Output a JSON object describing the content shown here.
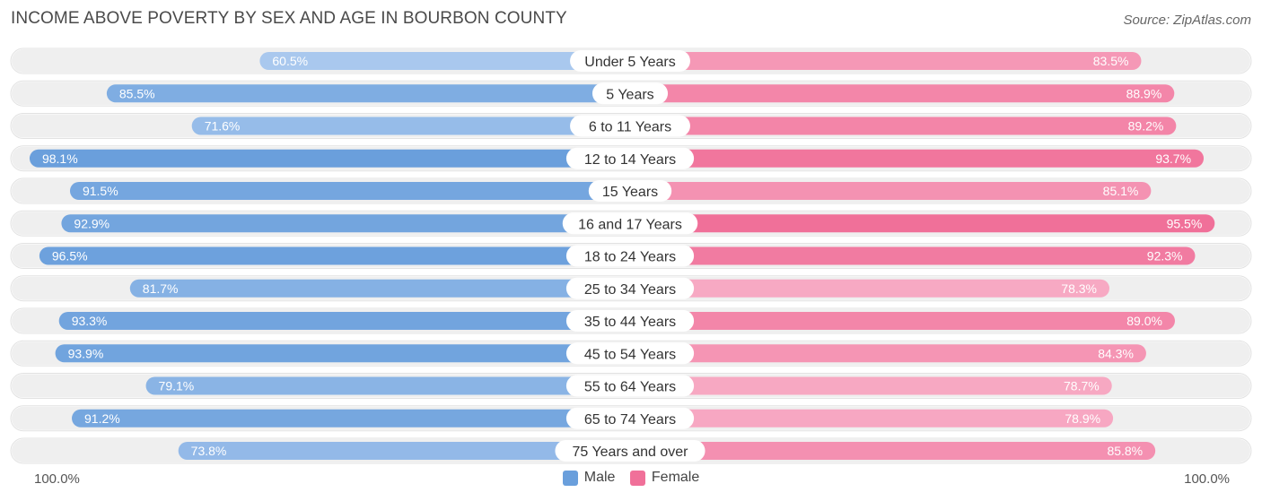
{
  "title": "INCOME ABOVE POVERTY BY SEX AND AGE IN BOURBON COUNTY",
  "source": "Source: ZipAtlas.com",
  "colors": {
    "male_strong": "#6a9fdc",
    "male_light": "#a9c8ee",
    "female_strong": "#f07099",
    "female_light": "#f7a9c3",
    "track": "#efefef"
  },
  "legend": {
    "male": "Male",
    "female": "Female"
  },
  "axis": {
    "left": "100.0%",
    "right": "100.0%"
  },
  "chart_data": {
    "type": "bar",
    "orientation": "horizontal-diverging",
    "categories": [
      "Under 5 Years",
      "5 Years",
      "6 to 11 Years",
      "12 to 14 Years",
      "15 Years",
      "16 and 17 Years",
      "18 to 24 Years",
      "25 to 34 Years",
      "35 to 44 Years",
      "45 to 54 Years",
      "55 to 64 Years",
      "65 to 74 Years",
      "75 Years and over"
    ],
    "series": [
      {
        "name": "Male",
        "values": [
          60.5,
          85.5,
          71.6,
          98.1,
          91.5,
          92.9,
          96.5,
          81.7,
          93.3,
          93.9,
          79.1,
          91.2,
          73.8
        ],
        "labels": [
          "60.5%",
          "85.5%",
          "71.6%",
          "98.1%",
          "91.5%",
          "92.9%",
          "96.5%",
          "81.7%",
          "93.3%",
          "93.9%",
          "79.1%",
          "91.2%",
          "73.8%"
        ]
      },
      {
        "name": "Female",
        "values": [
          83.5,
          88.9,
          89.2,
          93.7,
          85.1,
          95.5,
          92.3,
          78.3,
          89.0,
          84.3,
          78.7,
          78.9,
          85.8
        ],
        "labels": [
          "83.5%",
          "88.9%",
          "89.2%",
          "93.7%",
          "85.1%",
          "95.5%",
          "92.3%",
          "78.3%",
          "89.0%",
          "84.3%",
          "78.7%",
          "78.9%",
          "85.8%"
        ]
      }
    ],
    "xlim": [
      0,
      100
    ],
    "legend_position": "bottom-center"
  }
}
